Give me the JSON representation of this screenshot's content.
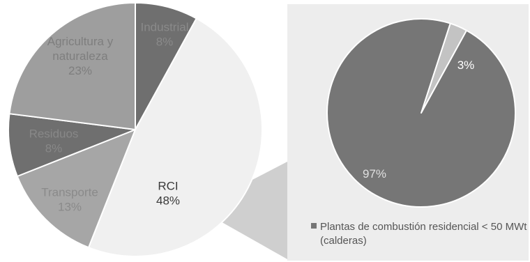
{
  "chart_data": [
    {
      "type": "pie",
      "slices": [
        {
          "label_lines": [
            "Industrial",
            "8%"
          ],
          "value": 8,
          "color": "#6f6f6f",
          "text_color": "#8a8a8a"
        },
        {
          "label_lines": [
            "RCI",
            "48%"
          ],
          "value": 48,
          "color": "#f0f0f0",
          "text_color": "#3a3a3a"
        },
        {
          "label_lines": [
            "Transporte",
            "13%"
          ],
          "value": 13,
          "color": "#a6a6a6",
          "text_color": "#8a8a8a"
        },
        {
          "label_lines": [
            "Residuos",
            "8%"
          ],
          "value": 8,
          "color": "#6f6f6f",
          "text_color": "#888888"
        },
        {
          "label_lines": [
            "Agricultura y",
            "naturaleza",
            "23%"
          ],
          "value": 23,
          "color": "#9e9e9e",
          "text_color": "#7e7e7e"
        }
      ]
    },
    {
      "type": "pie",
      "slices": [
        {
          "label": "3%",
          "value": 3,
          "color": "#c3c3c3",
          "text_color": "#ffffff"
        },
        {
          "label": "97%",
          "value": 97,
          "color": "#767676",
          "text_color": "#e0e0e0"
        }
      ],
      "legend": {
        "position": "bottom",
        "lines": [
          "Plantas de combustión residencial < 50 MWt",
          "(calderas)"
        ],
        "marker_color": "#767676"
      }
    }
  ],
  "colors": {
    "panel_background": "#ededed",
    "connector": "#cfcfcf"
  }
}
